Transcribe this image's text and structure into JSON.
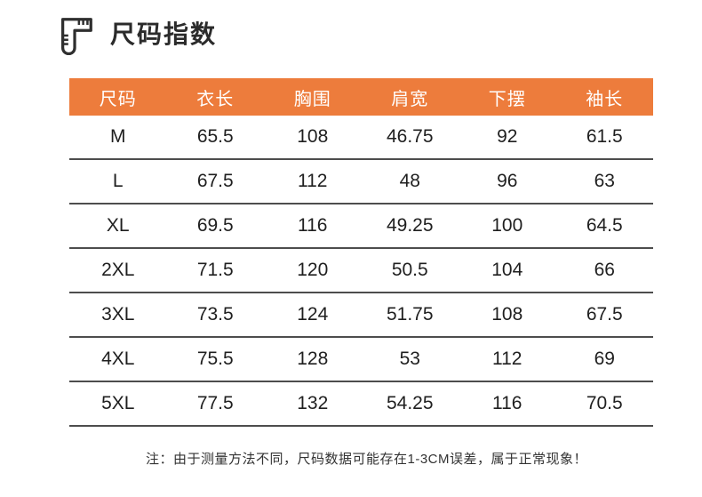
{
  "title": {
    "text": "尺码指数",
    "icon": "ruler-icon"
  },
  "colors": {
    "header_bg": "#ED7C3C",
    "header_text": "#FFFFFF",
    "row_text": "#1F1F1F",
    "divider": "#4D4D4D",
    "title_text": "#2B2B2B",
    "note_text": "#333333",
    "icon_stroke": "#2F2F2F"
  },
  "chart_data": {
    "type": "table",
    "title": "尺码指数",
    "columns": [
      "尺码",
      "衣长",
      "胸围",
      "肩宽",
      "下摆",
      "袖长"
    ],
    "rows": [
      [
        "M",
        "65.5",
        "108",
        "46.75",
        "92",
        "61.5"
      ],
      [
        "L",
        "67.5",
        "112",
        "48",
        "96",
        "63"
      ],
      [
        "XL",
        "69.5",
        "116",
        "49.25",
        "100",
        "64.5"
      ],
      [
        "2XL",
        "71.5",
        "120",
        "50.5",
        "104",
        "66"
      ],
      [
        "3XL",
        "73.5",
        "124",
        "51.75",
        "108",
        "67.5"
      ],
      [
        "4XL",
        "75.5",
        "128",
        "53",
        "112",
        "69"
      ],
      [
        "5XL",
        "77.5",
        "132",
        "54.25",
        "116",
        "70.5"
      ]
    ],
    "note": "注：由于测量方法不同，尺码数据可能存在1-3CM误差，属于正常现象！",
    "layout": {
      "grid": "horizontal-dividers-only",
      "header_style": "solid-orange",
      "legend": "none"
    }
  }
}
